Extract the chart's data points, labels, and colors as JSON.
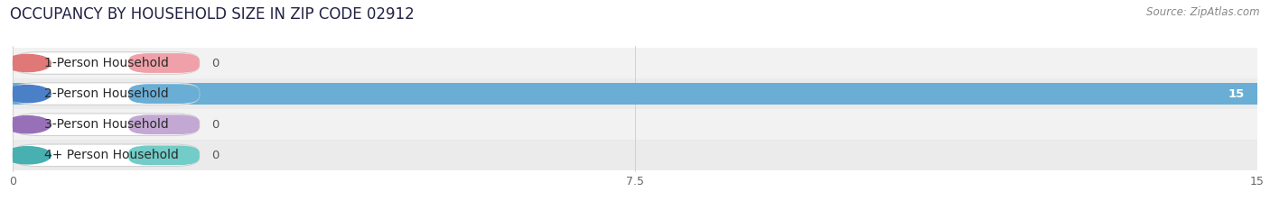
{
  "title": "OCCUPANCY BY HOUSEHOLD SIZE IN ZIP CODE 02912",
  "source": "Source: ZipAtlas.com",
  "categories": [
    "1-Person Household",
    "2-Person Household",
    "3-Person Household",
    "4+ Person Household"
  ],
  "values": [
    0,
    15,
    0,
    0
  ],
  "bar_colors": [
    "#f0a0a8",
    "#6aaed6",
    "#c4a8d4",
    "#72ccc8"
  ],
  "accent_colors": [
    "#e07878",
    "#4a80c8",
    "#9870b8",
    "#48b0b0"
  ],
  "row_bg_colors": [
    "#f2f2f2",
    "#ebebeb",
    "#f2f2f2",
    "#ebebeb"
  ],
  "xlim": [
    0,
    15
  ],
  "xticks": [
    0,
    7.5,
    15
  ],
  "background_color": "#ffffff",
  "title_fontsize": 12,
  "source_fontsize": 8.5,
  "label_fontsize": 10,
  "value_fontsize": 9.5
}
